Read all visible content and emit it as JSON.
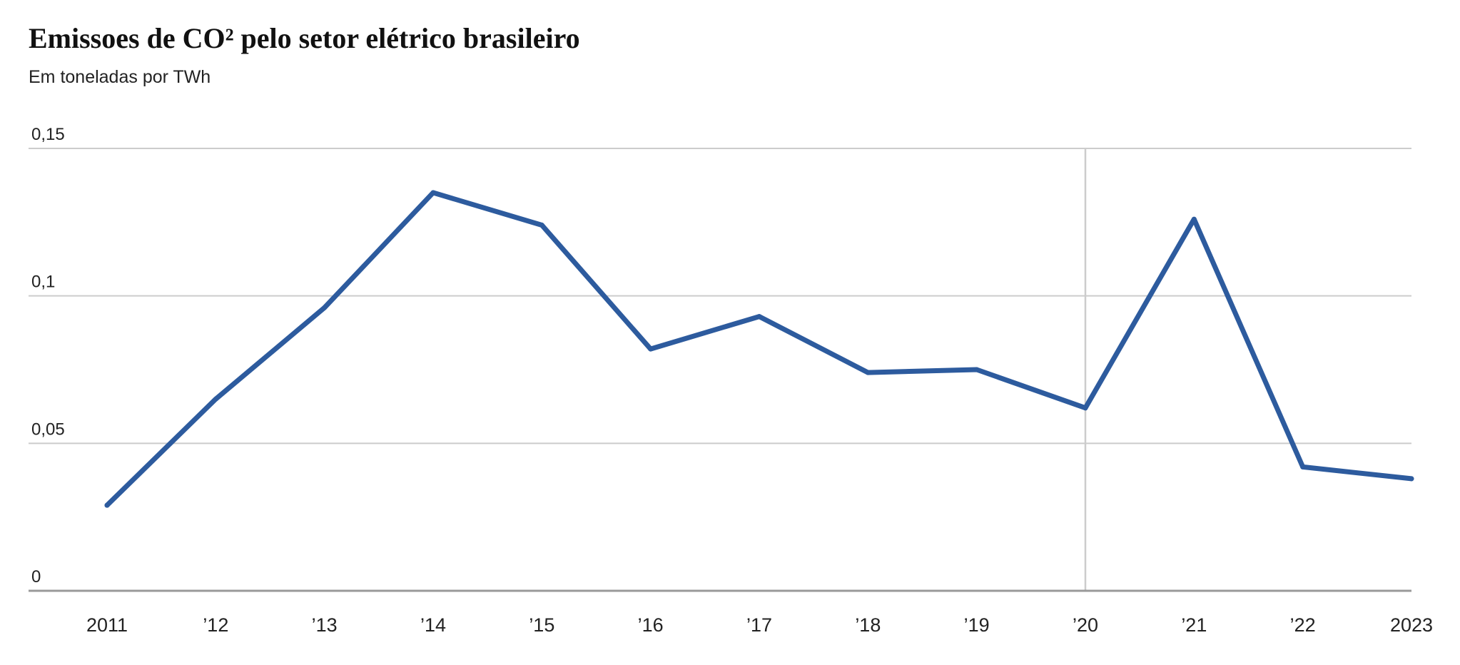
{
  "chart_data": {
    "type": "line",
    "title": "Emissoes de CO² pelo setor elétrico brasileiro",
    "subtitle": "Em toneladas por TWh",
    "xlabel": "",
    "ylabel": "",
    "x": [
      "2011",
      "2012",
      "2013",
      "2014",
      "2015",
      "2016",
      "2017",
      "2018",
      "2019",
      "2020",
      "2021",
      "2022",
      "2023"
    ],
    "x_tick_labels": [
      "2011",
      "’12",
      "’13",
      "’14",
      "’15",
      "’16",
      "’17",
      "’18",
      "’19",
      "’20",
      "’21",
      "’22",
      "2023"
    ],
    "series": [
      {
        "values": [
          0.029,
          0.065,
          0.096,
          0.135,
          0.124,
          0.082,
          0.093,
          0.074,
          0.075,
          0.062,
          0.126,
          0.042,
          0.038
        ]
      }
    ],
    "y_ticks": [
      0,
      0.05,
      0.1,
      0.15
    ],
    "y_tick_labels": [
      "0",
      "0,05",
      "0,1",
      "0,15"
    ],
    "ylim": [
      0,
      0.15
    ],
    "highlight_x": "2020",
    "grid": true,
    "colors": {
      "line": "#2d5b9e",
      "grid": "#cccccc",
      "axis": "#999999",
      "highlight": "#cccccc"
    }
  }
}
